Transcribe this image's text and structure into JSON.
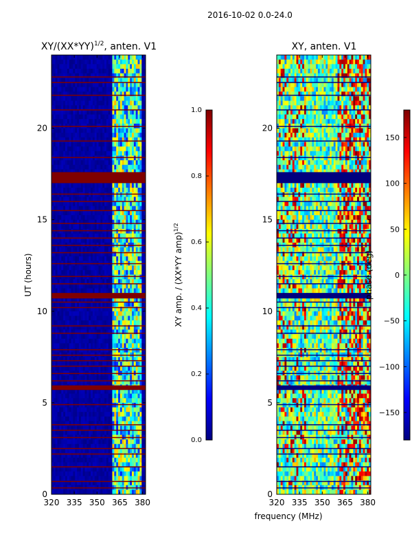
{
  "figure": {
    "suptitle": "2016-10-02 0.0-24.0",
    "xlabel": "frequency (MHz)"
  },
  "colors": {
    "axis": "#000000",
    "background": "#ffffff",
    "flag_left": "#7f0000",
    "flag_right": "#00007f",
    "jet_stops": [
      "#00007f",
      "#0000ff",
      "#007fff",
      "#00ffff",
      "#7fff7f",
      "#ffff00",
      "#ff7f00",
      "#ff0000",
      "#7f0000"
    ]
  },
  "chart_data": [
    {
      "type": "heatmap",
      "title_main": "XY/(XX*YY)",
      "title_sup": "1/2",
      "title_rest": ", anten. V1",
      "ylabel": "UT (hours)",
      "xlim": [
        320,
        382
      ],
      "ylim": [
        0,
        24
      ],
      "xticks": [
        320,
        335,
        350,
        365,
        380
      ],
      "yticks": [
        0,
        5,
        10,
        15,
        20
      ],
      "signal_band": [
        360,
        380
      ],
      "flagged_blocks": [
        [
          17.0,
          17.6
        ],
        [
          10.7,
          11.0
        ],
        [
          5.7,
          5.95
        ]
      ],
      "flagged_lines": [
        0.35,
        0.7,
        1.5,
        2.2,
        2.5,
        3.1,
        3.5,
        3.8,
        4.9,
        6.2,
        6.6,
        7.0,
        7.3,
        7.6,
        7.9,
        8.8,
        9.2,
        10.2,
        10.5,
        11.5,
        11.9,
        12.6,
        13.2,
        13.6,
        14.0,
        14.4,
        14.8,
        15.5,
        16.0,
        16.4,
        18.4,
        19.3,
        20.1,
        21.0,
        21.8,
        22.5,
        22.8
      ],
      "colorbar": {
        "label_main": "XY amp. / (XX*YY amp)",
        "label_sup": "1/2",
        "range": [
          0.0,
          1.0
        ],
        "ticks": [
          "0.0",
          "0.2",
          "0.4",
          "0.6",
          "0.8",
          "1.0"
        ]
      }
    },
    {
      "type": "heatmap",
      "title": "XY, anten. V1",
      "xlim": [
        320,
        382
      ],
      "ylim": [
        0,
        24
      ],
      "xticks": [
        320,
        335,
        350,
        365,
        380
      ],
      "yticks": [
        0,
        5,
        10,
        15,
        20
      ],
      "flagged_blocks": [
        [
          17.0,
          17.6
        ],
        [
          10.7,
          11.0
        ],
        [
          5.7,
          5.95
        ]
      ],
      "flagged_lines": [
        0.35,
        0.7,
        1.5,
        2.2,
        2.5,
        3.1,
        3.5,
        3.8,
        4.9,
        6.2,
        6.6,
        7.0,
        7.3,
        7.6,
        7.9,
        8.8,
        9.2,
        10.2,
        10.5,
        11.5,
        11.9,
        12.6,
        13.2,
        13.6,
        14.0,
        14.4,
        14.8,
        15.5,
        16.0,
        16.4,
        18.4,
        19.3,
        20.1,
        21.0,
        21.8,
        22.5,
        22.8
      ],
      "colorbar": {
        "label": "phase (deg)",
        "range": [
          -180,
          180
        ],
        "ticks": [
          "−150",
          "−100",
          "−50",
          "0",
          "50",
          "100",
          "150"
        ],
        "tick_values": [
          -150,
          -100,
          -50,
          0,
          50,
          100,
          150
        ]
      }
    }
  ]
}
